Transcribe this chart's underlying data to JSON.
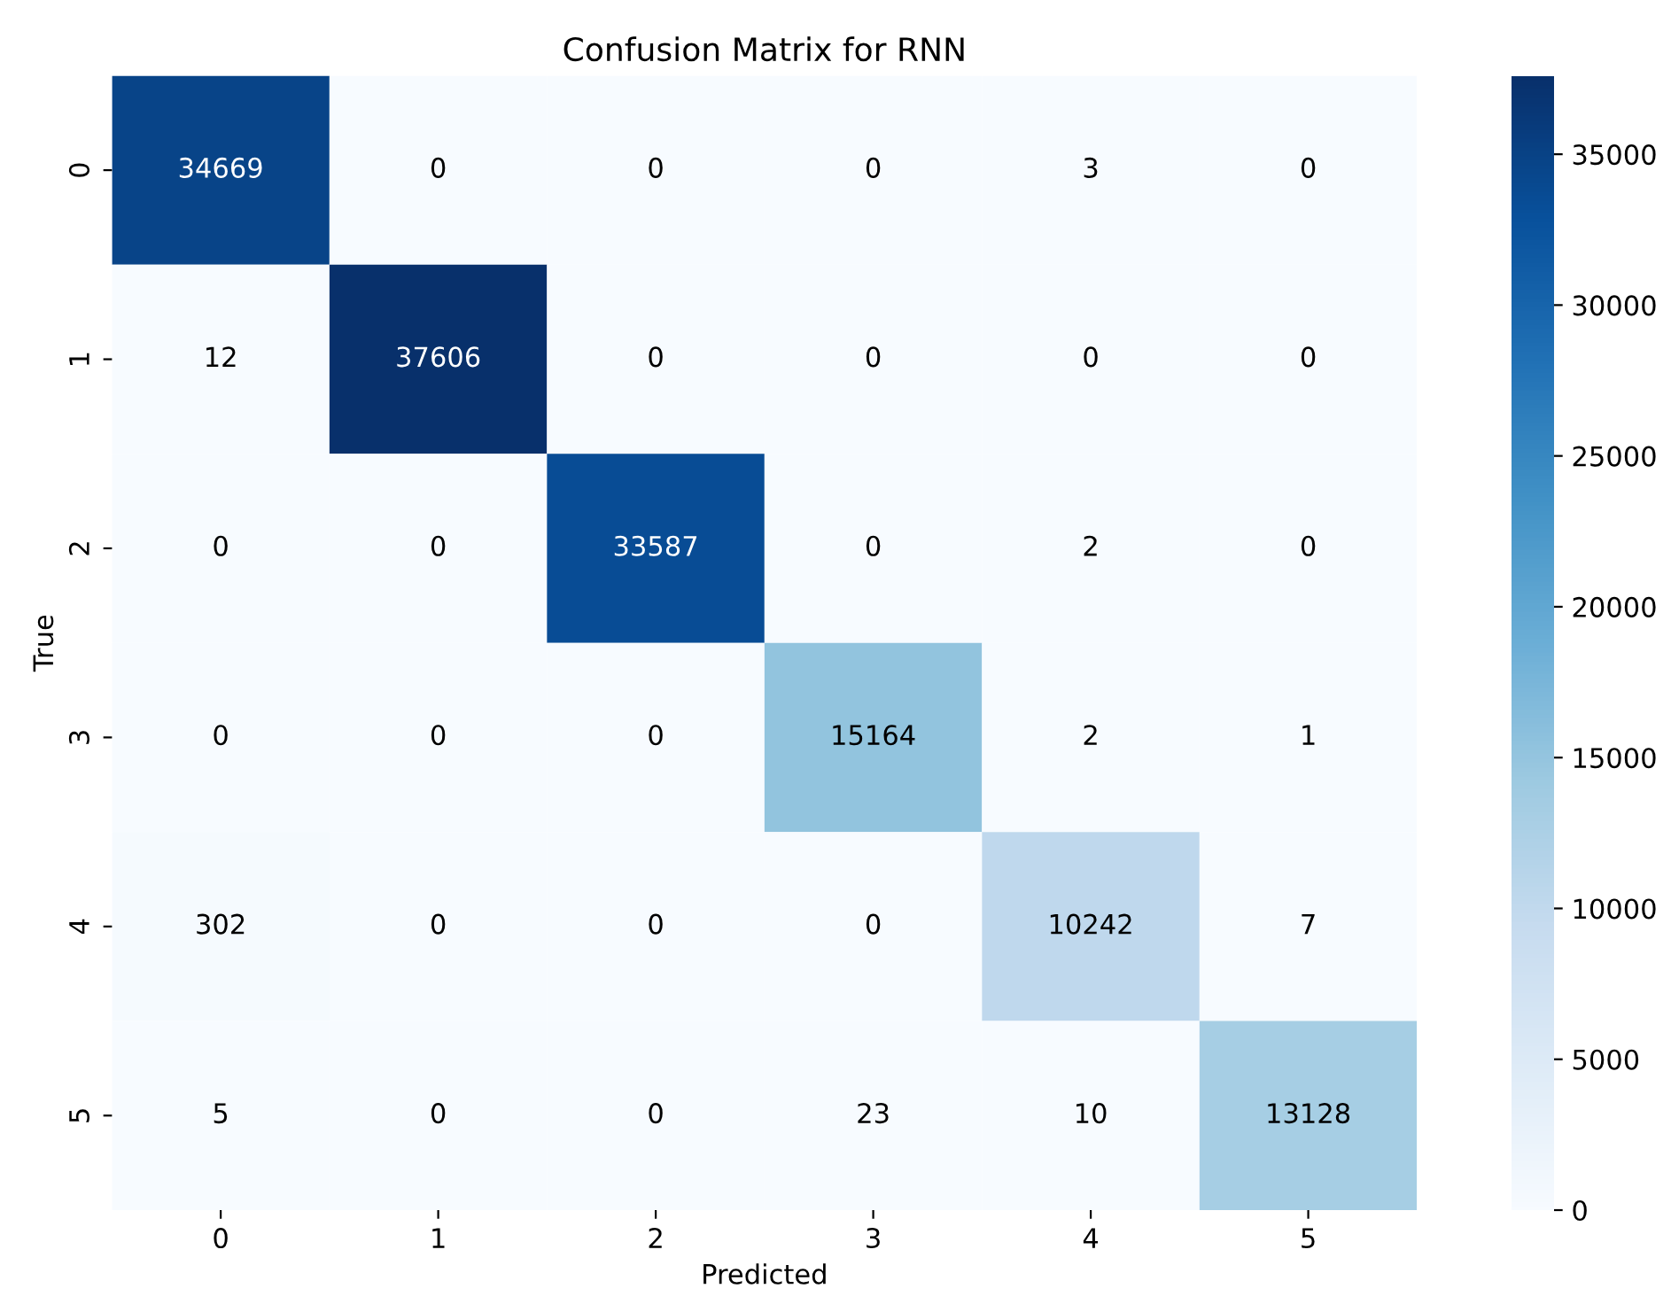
{
  "chart_data": {
    "type": "heatmap",
    "title": "Confusion Matrix for RNN",
    "xlabel": "Predicted",
    "ylabel": "True",
    "categories": [
      "0",
      "1",
      "2",
      "3",
      "4",
      "5"
    ],
    "y_categories": [
      "0",
      "1",
      "2",
      "3",
      "4",
      "5"
    ],
    "cells": [
      [
        34669,
        0,
        0,
        0,
        3,
        0
      ],
      [
        12,
        37606,
        0,
        0,
        0,
        0
      ],
      [
        0,
        0,
        33587,
        0,
        2,
        0
      ],
      [
        0,
        0,
        0,
        15164,
        2,
        1
      ],
      [
        302,
        0,
        0,
        0,
        10242,
        7
      ],
      [
        5,
        0,
        0,
        23,
        10,
        13128
      ]
    ],
    "data_labels": true,
    "clim": [
      0,
      37606
    ],
    "cticks": [
      0,
      5000,
      10000,
      15000,
      20000,
      25000,
      30000,
      35000
    ]
  }
}
